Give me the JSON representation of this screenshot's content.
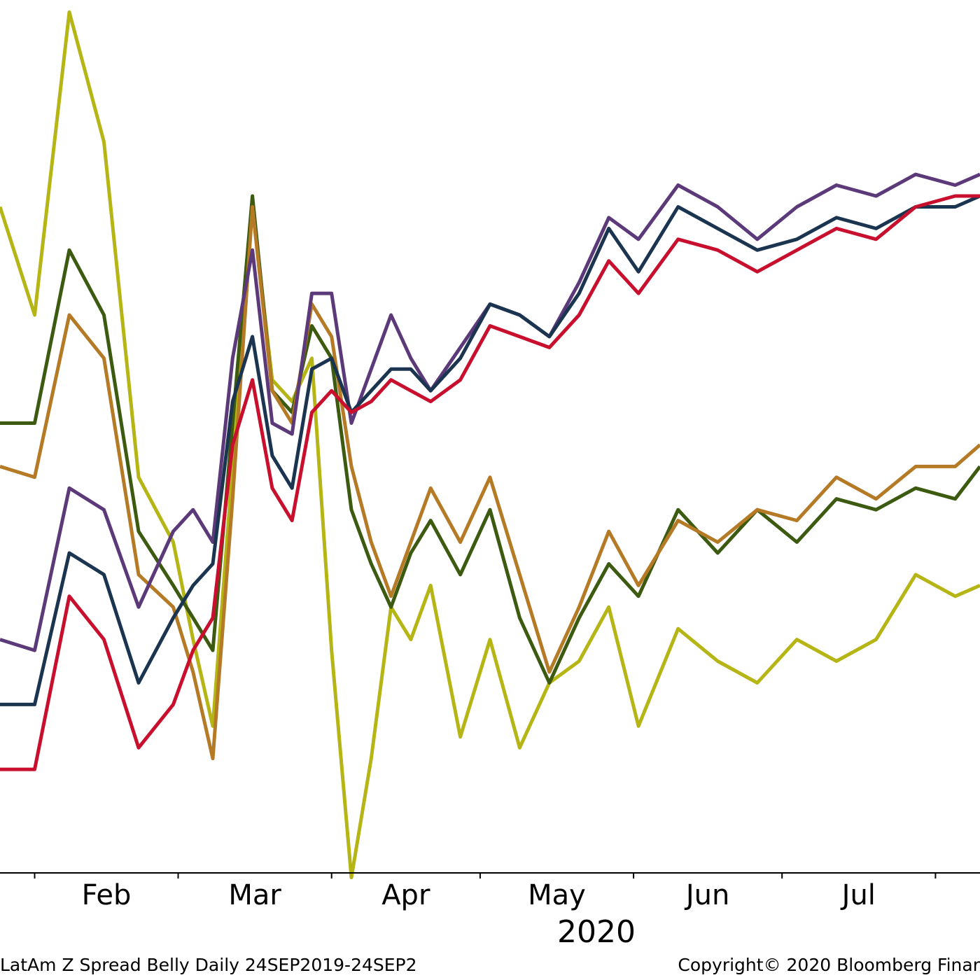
{
  "chart_data": {
    "type": "line",
    "title": "",
    "xlabel": "",
    "ylabel": "",
    "x_axis": {
      "month_ticks": [
        "Feb",
        "Mar",
        "Apr",
        "May",
        "Jun",
        "Jul"
      ],
      "year_label": "2020",
      "range": [
        "2020-01-25",
        "2020-08-10"
      ]
    },
    "grid": false,
    "x": [
      "2020-01-25",
      "2020-02-01",
      "2020-02-08",
      "2020-02-15",
      "2020-02-22",
      "2020-02-29",
      "2020-03-04",
      "2020-03-08",
      "2020-03-12",
      "2020-03-16",
      "2020-03-20",
      "2020-03-24",
      "2020-03-28",
      "2020-04-01",
      "2020-04-05",
      "2020-04-09",
      "2020-04-13",
      "2020-04-17",
      "2020-04-21",
      "2020-04-27",
      "2020-05-03",
      "2020-05-09",
      "2020-05-15",
      "2020-05-21",
      "2020-05-27",
      "2020-06-02",
      "2020-06-10",
      "2020-06-18",
      "2020-06-26",
      "2020-07-04",
      "2020-07-12",
      "2020-07-20",
      "2020-07-28",
      "2020-08-05",
      "2020-08-10"
    ],
    "series": [
      {
        "color": "#b5b515",
        "values": [
          860,
          910,
          770,
          830,
          985,
          1015,
          1060,
          1100,
          980,
          860,
          940,
          950,
          930,
          1065,
          1170,
          1115,
          1045,
          1060,
          1035,
          1105,
          1060,
          1110,
          1080,
          1070,
          1045,
          1100,
          1055,
          1070,
          1080,
          1060,
          1070,
          1060,
          1030,
          1040,
          1035
        ]
      },
      {
        "color": "#3c5a10",
        "values": [
          960,
          960,
          880,
          910,
          1010,
          1035,
          1050,
          1065,
          960,
          855,
          945,
          955,
          915,
          930,
          1000,
          1025,
          1045,
          1020,
          1005,
          1030,
          1000,
          1050,
          1080,
          1050,
          1025,
          1040,
          1000,
          1020,
          1000,
          1015,
          995,
          1000,
          990,
          995,
          980
        ]
      },
      {
        "color": "#b57a25",
        "values": [
          980,
          985,
          910,
          930,
          1030,
          1045,
          1075,
          1115,
          995,
          860,
          945,
          960,
          905,
          920,
          980,
          1015,
          1040,
          1015,
          990,
          1015,
          985,
          1030,
          1075,
          1045,
          1010,
          1035,
          1005,
          1015,
          1000,
          1005,
          985,
          995,
          980,
          980,
          970
        ]
      },
      {
        "color": "#5c3a7a",
        "values": [
          1060,
          1065,
          990,
          1000,
          1045,
          1010,
          1000,
          1015,
          930,
          880,
          960,
          965,
          900,
          900,
          960,
          935,
          910,
          930,
          945,
          925,
          905,
          910,
          920,
          895,
          865,
          875,
          850,
          860,
          875,
          860,
          850,
          855,
          845,
          850,
          845
        ]
      },
      {
        "color": "#1b3550",
        "values": [
          1090,
          1090,
          1020,
          1030,
          1080,
          1050,
          1035,
          1025,
          950,
          920,
          975,
          990,
          935,
          930,
          955,
          945,
          935,
          935,
          945,
          930,
          905,
          910,
          920,
          900,
          870,
          890,
          860,
          870,
          880,
          875,
          865,
          870,
          860,
          860,
          855
        ]
      },
      {
        "color": "#c8102e",
        "values": [
          1120,
          1120,
          1040,
          1060,
          1110,
          1090,
          1065,
          1050,
          970,
          940,
          990,
          1005,
          955,
          945,
          955,
          950,
          940,
          945,
          950,
          940,
          915,
          920,
          925,
          910,
          885,
          900,
          875,
          880,
          890,
          880,
          870,
          875,
          860,
          855,
          855
        ]
      }
    ],
    "series_order_top_to_bottom": [
      "#b5b515",
      "#3c5a10",
      "#b57a25",
      "#5c3a7a",
      "#1b3550",
      "#c8102e"
    ]
  },
  "footer": {
    "left": "LatAm Z Spread Belly  Daily 24SEP2019-24SEP2",
    "right": "Copyright© 2020 Bloomberg Finar"
  }
}
